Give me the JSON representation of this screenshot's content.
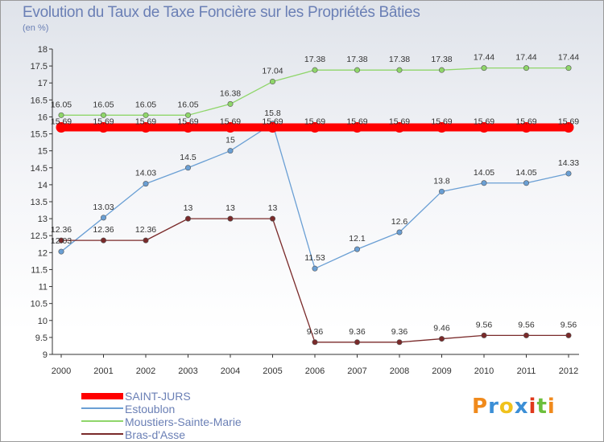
{
  "header": {
    "title": "Evolution du Taux de Taxe Foncière sur les Propriétés Bâties",
    "unit": "(en %)"
  },
  "logo": {
    "text": "Proxiti"
  },
  "chart_data": {
    "type": "line",
    "title": "Evolution du Taux de Taxe Foncière sur les Propriétés Bâties",
    "ylabel": "(en %)",
    "xlabel": "",
    "x": [
      "2000",
      "2001",
      "2002",
      "2003",
      "2004",
      "2005",
      "2006",
      "2007",
      "2008",
      "2009",
      "2010",
      "2011",
      "2012"
    ],
    "ylim": [
      9,
      18
    ],
    "yticks": [
      "9",
      "9.5",
      "10",
      "10.5",
      "11",
      "11.5",
      "12",
      "12.5",
      "13",
      "13.5",
      "14",
      "14.5",
      "15",
      "15.5",
      "16",
      "16.5",
      "17",
      "17.5",
      "18"
    ],
    "grid": false,
    "legend_position": "bottom-left",
    "series": [
      {
        "name": "SAINT-JURS",
        "color": "#ff0000",
        "values": [
          15.69,
          15.69,
          15.69,
          15.69,
          15.69,
          15.69,
          15.69,
          15.69,
          15.69,
          15.69,
          15.69,
          15.69,
          15.69
        ],
        "labels": [
          "15.69",
          "15.69",
          "15.69",
          "15.69",
          "15.69",
          "15.69",
          "15.69",
          "15.69",
          "15.69",
          "15.69",
          "15.69",
          "15.69",
          "15.69"
        ]
      },
      {
        "name": "Estoublon",
        "color": "#6a9fd4",
        "values": [
          12.03,
          13.03,
          14.03,
          14.5,
          15,
          15.8,
          11.53,
          12.1,
          12.6,
          13.8,
          14.05,
          14.05,
          14.33
        ],
        "labels": [
          "12.03",
          "13.03",
          "14.03",
          "14.5",
          "15",
          "15.8",
          "11.53",
          "12.1",
          "12.6",
          "13.8",
          "14.05",
          "14.05",
          "14.33"
        ]
      },
      {
        "name": "Moustiers-Sainte-Marie",
        "color": "#8fd66a",
        "values": [
          16.05,
          16.05,
          16.05,
          16.05,
          16.38,
          17.04,
          17.38,
          17.38,
          17.38,
          17.38,
          17.44,
          17.44,
          17.44
        ],
        "labels": [
          "16.05",
          "16.05",
          "16.05",
          "16.05",
          "16.38",
          "17.04",
          "17.38",
          "17.38",
          "17.38",
          "17.38",
          "17.44",
          "17.44",
          "17.44"
        ]
      },
      {
        "name": "Bras-d'Asse",
        "color": "#7a2a2a",
        "values": [
          12.36,
          12.36,
          12.36,
          13,
          13,
          13,
          9.36,
          9.36,
          9.36,
          9.46,
          9.56,
          9.56,
          9.56
        ],
        "labels": [
          "12.36",
          "12.36",
          "12.36",
          "13",
          "13",
          "13",
          "9.36",
          "9.36",
          "9.36",
          "9.46",
          "9.56",
          "9.56",
          "9.56"
        ]
      }
    ]
  }
}
